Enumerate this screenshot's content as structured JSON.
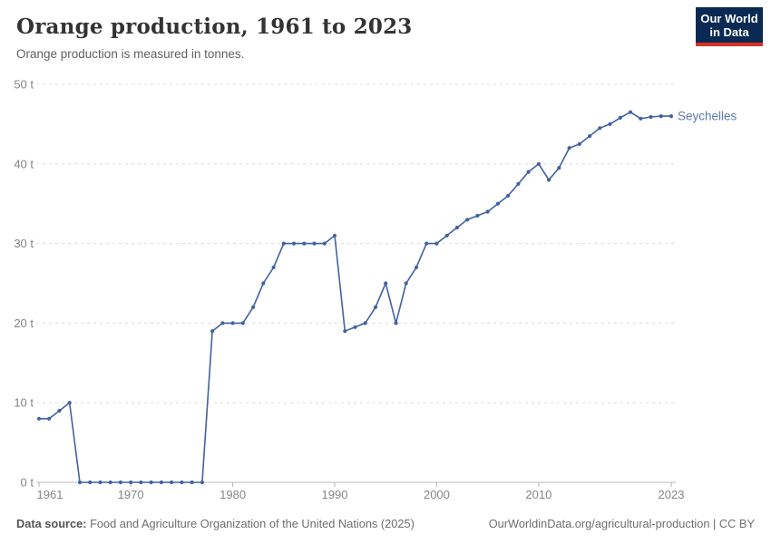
{
  "header": {
    "title": "Orange production, 1961 to 2023",
    "subtitle": "Orange production is measured in tonnes."
  },
  "logo": {
    "line1": "Our World",
    "line2": "in Data",
    "bg_color": "#0a2a54",
    "accent_color": "#d93025"
  },
  "footer": {
    "source_label": "Data source:",
    "source_text": " Food and Agriculture Organization of the United Nations (2025)",
    "link_text": "OurWorldinData.org/agricultural-production | CC BY"
  },
  "chart_data": {
    "type": "line",
    "title": "Orange production, 1961 to 2023",
    "unit": "tonnes",
    "xlim": [
      1961,
      2023
    ],
    "ylim": [
      0,
      50
    ],
    "x_ticks": [
      1961,
      1970,
      1980,
      1990,
      2000,
      2010,
      2023
    ],
    "y_ticks": [
      0,
      10,
      20,
      30,
      40,
      50
    ],
    "y_tick_suffix": " t",
    "grid": "horizontal-dashed",
    "legend_position": "right-of-line-end",
    "series": [
      {
        "name": "Seychelles",
        "color": "#4262a0",
        "label_color": "#5b7bb5",
        "x": [
          1961,
          1962,
          1963,
          1964,
          1965,
          1966,
          1967,
          1968,
          1969,
          1970,
          1971,
          1972,
          1973,
          1974,
          1975,
          1976,
          1977,
          1978,
          1979,
          1980,
          1981,
          1982,
          1983,
          1984,
          1985,
          1986,
          1987,
          1988,
          1989,
          1990,
          1991,
          1992,
          1993,
          1994,
          1995,
          1996,
          1997,
          1998,
          1999,
          2000,
          2001,
          2002,
          2003,
          2004,
          2005,
          2006,
          2007,
          2008,
          2009,
          2010,
          2011,
          2012,
          2013,
          2014,
          2015,
          2016,
          2017,
          2018,
          2019,
          2020,
          2021,
          2022,
          2023
        ],
        "values": [
          8,
          8,
          9,
          10,
          0,
          0,
          0,
          0,
          0,
          0,
          0,
          0,
          0,
          0,
          0,
          0,
          0,
          19,
          20,
          20,
          20,
          22,
          25,
          27,
          30,
          30,
          30,
          30,
          30,
          31,
          19,
          19.5,
          20,
          22,
          25,
          20,
          25,
          27,
          30,
          30,
          31,
          32,
          33,
          33.5,
          34,
          35,
          36,
          37.5,
          39,
          40,
          38,
          39.5,
          42,
          42.5,
          43.5,
          44.5,
          45,
          45.8,
          46.5,
          45.7,
          45.9,
          46,
          46
        ]
      }
    ]
  }
}
